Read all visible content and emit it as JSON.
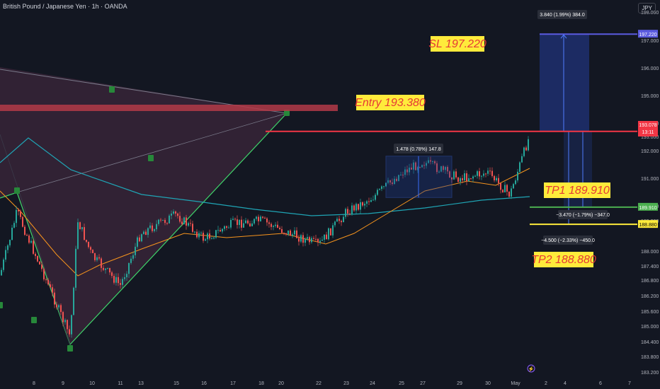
{
  "header": {
    "title": "British Pound / Japanese Yen · 1h · OANDA",
    "currency": "JPY"
  },
  "labels": {
    "sl": "SL 197.220",
    "entry": "Entry 193.380",
    "tp1": "TP1 189.910",
    "tp2": "TP2 188.880",
    "sl_box": "3.840 (1.99%) 384.0",
    "tp1_box": "−3.470 (−1.79%) −347.0",
    "tp2_box": "−4.500 (−2.33%) −450.0",
    "range_box": "1.478 (0.78%) 147.8",
    "price_tags": {
      "sl": "197.220",
      "entry": "193.380",
      "last": "193.078",
      "countdown": "13:11",
      "tp1": "189.910",
      "tp2": "188.880"
    }
  },
  "colors": {
    "background": "#131722",
    "axis_text": "#b2b5be",
    "bull": "#26a69a",
    "bear": "#ef5350",
    "entry_line": "#f23645",
    "tp1_line": "#4caf50",
    "tp2_line": "#ffeb3b",
    "sl_line": "#5b5be0",
    "label_bg": "#ffeb3b",
    "label_text": "#e53935",
    "ema_fast": "#f7941d",
    "ema_slow": "#1fa5b5",
    "harmonic": "#3fd46a"
  },
  "chart_data": {
    "type": "candlestick",
    "symbol": "GBPJPY",
    "timeframe": "1h",
    "ylim": [
      183.0,
      198.0
    ],
    "y_ticks": [
      "198.000",
      "197.000",
      "196.000",
      "195.000",
      "194.000",
      "193.000",
      "192.000",
      "191.000",
      "190.000",
      "189.000",
      "188.000",
      "187.400",
      "186.800",
      "186.200",
      "185.600",
      "185.000",
      "184.400",
      "183.800",
      "183.200"
    ],
    "x_ticks": [
      "8",
      "9",
      "10",
      "11",
      "13",
      "15",
      "16",
      "17",
      "18",
      "20",
      "22",
      "23",
      "24",
      "25",
      "27",
      "29",
      "30",
      "May",
      "2",
      "4",
      "6",
      "7"
    ],
    "close_path": [
      {
        "x": "Apr 7",
        "y": 187.0
      },
      {
        "x": "Apr 8",
        "y": 189.6
      },
      {
        "x": "Apr 9",
        "y": 184.6
      },
      {
        "x": "Apr 9",
        "y": 189.0
      },
      {
        "x": "Apr 10",
        "y": 187.8
      },
      {
        "x": "Apr 11",
        "y": 186.6
      },
      {
        "x": "Apr 14",
        "y": 188.6
      },
      {
        "x": "Apr 15",
        "y": 189.4
      },
      {
        "x": "Apr 16",
        "y": 188.4
      },
      {
        "x": "Apr 17",
        "y": 188.9
      },
      {
        "x": "Apr 18",
        "y": 189.0
      },
      {
        "x": "Apr 21",
        "y": 188.7
      },
      {
        "x": "Apr 22",
        "y": 188.2
      },
      {
        "x": "Apr 23",
        "y": 189.6
      },
      {
        "x": "Apr 24",
        "y": 190.3
      },
      {
        "x": "Apr 25",
        "y": 191.2
      },
      {
        "x": "Apr 26",
        "y": 191.6
      },
      {
        "x": "Apr 28",
        "y": 191.0
      },
      {
        "x": "Apr 29",
        "y": 191.2
      },
      {
        "x": "Apr 30",
        "y": 190.4
      },
      {
        "x": "May 1",
        "y": 193.1
      }
    ],
    "levels": {
      "stop_loss": 197.22,
      "entry": 193.38,
      "tp1": 189.91,
      "tp2": 188.88
    },
    "range_box": {
      "from": 190.3,
      "to": 191.8
    },
    "supply_zone": {
      "from": 193.6,
      "to": 193.8
    }
  }
}
